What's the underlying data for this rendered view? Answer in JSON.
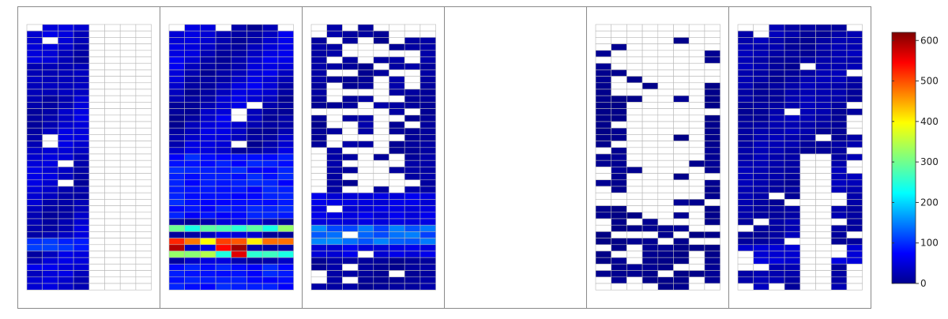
{
  "chart_data": {
    "type": "heatmap",
    "title": "",
    "panel_count": 6,
    "colorbar": {
      "colormap": "jet",
      "range": [
        0,
        620
      ],
      "ticks": [
        0,
        100,
        200,
        300,
        400,
        500,
        600
      ],
      "tick_labels": [
        "0",
        "100",
        "200",
        "300",
        "400",
        "500",
        "600"
      ]
    },
    "panels": [
      {
        "cols": 8,
        "rows": 41,
        "blank_cols": [
          4,
          5,
          6,
          7
        ],
        "base": 40,
        "amp": 20,
        "noise": 12,
        "bands": [
          [
            33,
            35,
            105
          ],
          [
            37,
            38,
            60
          ],
          [
            6,
            11,
            35
          ]
        ],
        "empty_cells": [
          [
            0,
            0
          ],
          [
            2,
            1
          ],
          [
            17,
            1
          ],
          [
            18,
            1
          ],
          [
            21,
            2
          ],
          [
            24,
            2
          ]
        ]
      },
      {
        "cols": 8,
        "rows": 41,
        "blank_cols": [],
        "base": 40,
        "amp": 25,
        "noise": 14,
        "bands": [
          [
            20,
            30,
            90
          ],
          [
            31,
            32,
            280
          ],
          [
            33,
            34,
            460
          ],
          [
            35,
            36,
            300
          ],
          [
            37,
            41,
            90
          ]
        ],
        "hot_cells": [
          [
            34,
            0,
            590
          ],
          [
            34,
            4,
            600
          ],
          [
            34,
            3,
            540
          ],
          [
            35,
            4,
            560
          ],
          [
            33,
            1,
            470
          ]
        ],
        "empty_cells": [
          [
            0,
            0
          ],
          [
            0,
            7
          ],
          [
            0,
            3
          ],
          [
            13,
            4
          ],
          [
            12,
            5
          ],
          [
            14,
            4
          ],
          [
            18,
            4
          ]
        ]
      },
      {
        "cols": 8,
        "rows": 41,
        "blank_cols": [],
        "base": 18,
        "amp": 6,
        "noise": 8,
        "sparse": "p3",
        "bands": [
          [
            26,
            36,
            60
          ],
          [
            31,
            34,
            140
          ]
        ]
      },
      {
        "cols": 0,
        "rows": 0,
        "blank_cols": [],
        "empty": true
      },
      {
        "cols": 8,
        "rows": 41,
        "blank_cols": [],
        "base": 8,
        "amp": 4,
        "noise": 5,
        "sparse": "p5"
      },
      {
        "cols": 8,
        "rows": 41,
        "blank_cols": [],
        "base": 25,
        "amp": 10,
        "noise": 10,
        "sparse": "p6",
        "bands": [
          [
            34,
            37,
            55
          ]
        ]
      }
    ]
  }
}
